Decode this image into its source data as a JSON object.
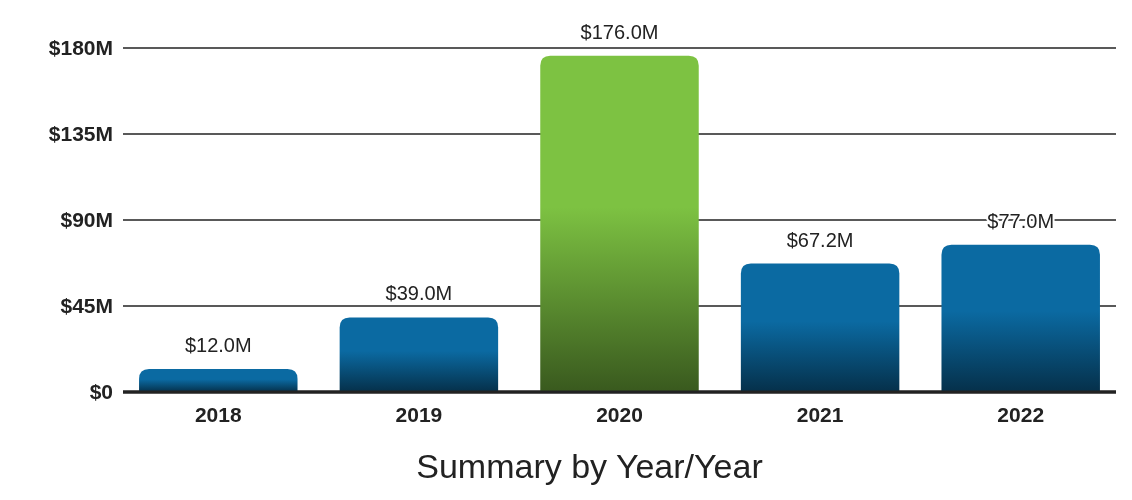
{
  "chart_data": {
    "type": "bar",
    "xlabel": "Summary by Year/Year",
    "categories": [
      "2018",
      "2019",
      "2020",
      "2021",
      "2022"
    ],
    "values": [
      12.0,
      39.0,
      176.0,
      67.2,
      77.0
    ],
    "colors": [
      "#0b6aa2",
      "#0b6aa2",
      "#7dc242",
      "#0b6aa2",
      "#0b6aa2"
    ],
    "value_labels": [
      "$12.0M",
      "$39.0M",
      "$176.0M",
      "$67.2M",
      "$77.0M"
    ],
    "ylim": [
      0,
      180
    ],
    "yticks": [
      {
        "value": 0,
        "label": "$0"
      },
      {
        "value": 45,
        "label": "$45M"
      },
      {
        "value": 90,
        "label": "$90M"
      },
      {
        "value": 135,
        "label": "$135M"
      },
      {
        "value": 180,
        "label": "$180M"
      }
    ],
    "grid": "y"
  }
}
